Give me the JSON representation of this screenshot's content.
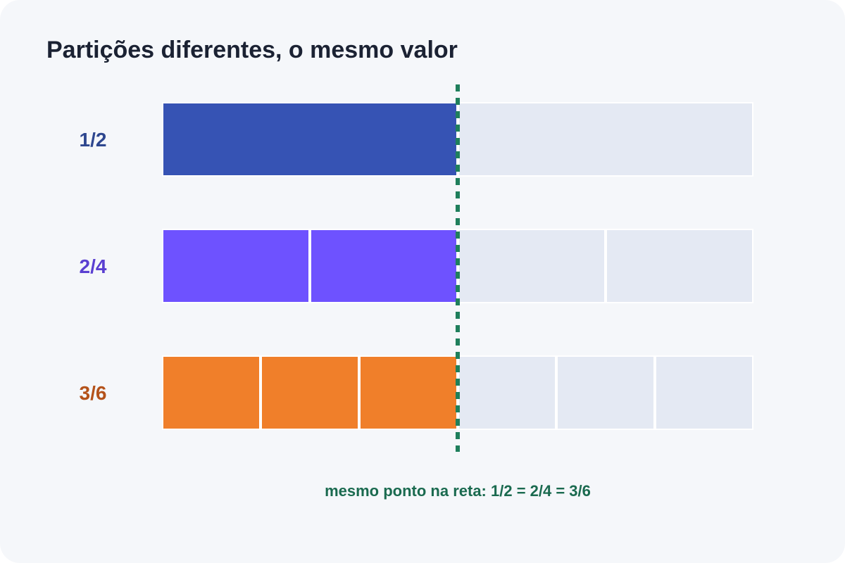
{
  "title": "Partições diferentes, o mesmo valor",
  "rows": [
    {
      "label": "1/2",
      "numerator": 1,
      "denominator": 2,
      "fill_color": "#3653b4",
      "label_color": "#2e478f"
    },
    {
      "label": "2/4",
      "numerator": 2,
      "denominator": 4,
      "fill_color": "#6e52ff",
      "label_color": "#5a3fd1"
    },
    {
      "label": "3/6",
      "numerator": 3,
      "denominator": 6,
      "fill_color": "#f07f2a",
      "label_color": "#b4521a"
    }
  ],
  "empty_color": "#e4e9f3",
  "marker": {
    "value": 0.5,
    "color": "#1f7f5c"
  },
  "caption": {
    "text": "mesmo ponto na reta: 1/2 = 2/4 = 3/6",
    "color": "#1a6a4f"
  }
}
